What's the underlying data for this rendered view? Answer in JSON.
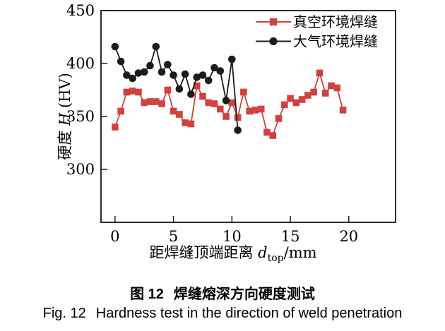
{
  "figure": {
    "caption_zh_label": "图 12",
    "caption_zh_text": "焊缝熔深方向硬度测试",
    "caption_en_label": "Fig. 12",
    "caption_en_text": "Hardness test in the direction of weld penetration"
  },
  "chart_data": {
    "type": "line",
    "title": "",
    "xlabel": "距焊缝顶端距离 d_top/mm",
    "ylabel": "硬度 H (HV)",
    "xlabel_parts": {
      "prefix": "距焊缝顶端距离 ",
      "var": "d",
      "sub": "top",
      "suffix": "/mm"
    },
    "ylabel_parts": {
      "prefix": "硬度 ",
      "var": "H",
      "suffix": " (HV)"
    },
    "xlim": [
      -1.2,
      24
    ],
    "ylim": [
      250,
      450
    ],
    "xticks": [
      0,
      5,
      10,
      15,
      20
    ],
    "yticks": [
      300,
      350,
      400,
      450
    ],
    "grid": false,
    "legend_position": "top-right-inside",
    "frame_color": "#2b2b2b",
    "series": [
      {
        "id": "vacuum-weld",
        "name": "真空环境焊缝",
        "color": "#d0423e",
        "marker": "square",
        "x": [
          0,
          0.5,
          1,
          1.5,
          2,
          2.5,
          3,
          3.5,
          4,
          4.5,
          5,
          5.5,
          6,
          6.5,
          7,
          7.5,
          8,
          8.5,
          9,
          9.5,
          10,
          10.5,
          11,
          11.5,
          12,
          12.5,
          13,
          13.5,
          14,
          14.5,
          15,
          15.5,
          16,
          16.5,
          17,
          17.5,
          18,
          18.5,
          19,
          19.5
        ],
        "y": [
          340,
          355,
          373,
          374,
          373,
          363,
          364,
          364,
          362,
          375,
          355,
          352,
          344,
          343,
          379,
          369,
          363,
          362,
          357,
          350,
          363,
          349,
          373,
          355,
          356,
          357,
          335,
          332,
          348,
          361,
          367,
          363,
          366,
          370,
          373,
          391,
          372,
          379,
          377,
          356
        ]
      },
      {
        "id": "atmosphere-weld",
        "name": "大气环境焊缝",
        "color": "#1b1b1b",
        "marker": "circle",
        "x": [
          0,
          0.5,
          1,
          1.5,
          2,
          2.5,
          3,
          3.5,
          4,
          4.5,
          5,
          5.5,
          6,
          6.5,
          7,
          7.5,
          8,
          8.5,
          9,
          9.5,
          10,
          10.5
        ],
        "y": [
          416,
          402,
          389,
          386,
          391,
          392,
          398,
          416,
          392,
          399,
          389,
          376,
          390,
          371,
          387,
          389,
          384,
          396,
          393,
          365,
          404,
          337
        ]
      }
    ]
  }
}
